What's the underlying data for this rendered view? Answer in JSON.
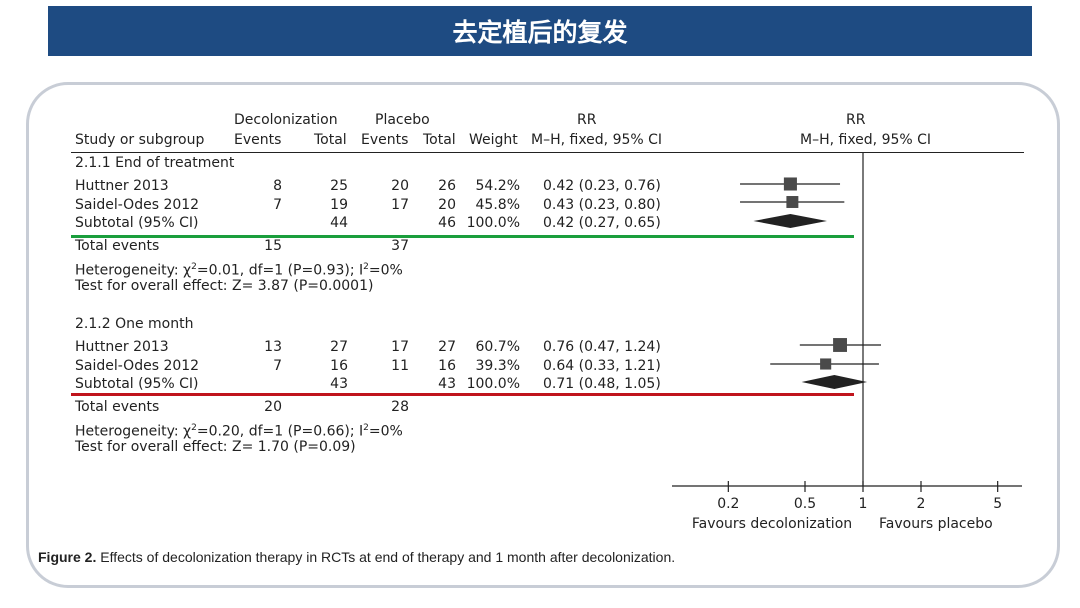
{
  "title": "去定植后的复发",
  "headers": {
    "group1": "Decolonization",
    "group2": "Placebo",
    "rr": "RR",
    "study": "Study or subgroup",
    "events1": "Events",
    "total1": "Total",
    "events2": "Events",
    "total2": "Total",
    "weight": "Weight",
    "method": "M–H, fixed, 95% CI",
    "plot_rr": "RR",
    "plot_method": "M–H, fixed, 95% CI"
  },
  "subgroups": [
    {
      "name": "2.1.1 End of treatment",
      "studies": [
        {
          "study": "Huttner 2013",
          "events1": "8",
          "total1": "25",
          "events2": "20",
          "total2": "26",
          "weight": "54.2%",
          "ci": "0.42 (0.23, 0.76)"
        },
        {
          "study": "Saidel-Odes 2012",
          "events1": "7",
          "total1": "19",
          "events2": "17",
          "total2": "20",
          "weight": "45.8%",
          "ci": "0.43 (0.23, 0.80)"
        }
      ],
      "subtotal": {
        "label": "Subtotal (95% CI)",
        "total1": "44",
        "total2": "46",
        "weight": "100.0%",
        "ci": "0.42 (0.27, 0.65)"
      },
      "total_events": {
        "label": "Total events",
        "events1": "15",
        "events2": "37"
      },
      "heterogeneity": {
        "prefix": "Heterogeneity: χ",
        "sup": "2",
        "rest": "=0.01, df=1 (P=0.93); I",
        "sup2": "2",
        "end": "=0%"
      },
      "overall": "Test for overall effect: Z= 3.87 (P=0.0001)",
      "underline_color": "#1a9e3c"
    },
    {
      "name": "2.1.2 One month",
      "studies": [
        {
          "study": "Huttner 2013",
          "events1": "13",
          "total1": "27",
          "events2": "17",
          "total2": "27",
          "weight": "60.7%",
          "ci": "0.76 (0.47, 1.24)"
        },
        {
          "study": "Saidel-Odes 2012",
          "events1": "7",
          "total1": "16",
          "events2": "11",
          "total2": "16",
          "weight": "39.3%",
          "ci": "0.64 (0.33, 1.21)"
        }
      ],
      "subtotal": {
        "label": "Subtotal (95% CI)",
        "total1": "43",
        "total2": "43",
        "weight": "100.0%",
        "ci": "0.71 (0.48, 1.05)"
      },
      "total_events": {
        "label": "Total events",
        "events1": "20",
        "events2": "28"
      },
      "heterogeneity": {
        "prefix": "Heterogeneity: χ",
        "sup": "2",
        "rest": "=0.20, df=1 (P=0.66); I",
        "sup2": "2",
        "end": "=0%"
      },
      "overall": "Test for overall effect: Z= 1.70 (P=0.09)",
      "underline_color": "#c0141c"
    }
  ],
  "axis": {
    "ticks": [
      "0.2",
      "0.5",
      "1",
      "2",
      "5"
    ],
    "left_label": "Favours decolonization",
    "right_label": "Favours placebo"
  },
  "caption": {
    "bold": "Figure 2.",
    "text": " Effects of decolonization therapy in RCTs at end of therapy and 1 month after decolonization."
  },
  "chart_data": {
    "type": "forest",
    "scale": "log",
    "xlim": [
      0.15,
      6
    ],
    "ticks": [
      0.2,
      0.5,
      1,
      2,
      5
    ],
    "series": [
      {
        "name": "Huttner 2013",
        "rr": 0.42,
        "lo": 0.23,
        "hi": 0.76,
        "weight": 54.2
      },
      {
        "name": "Saidel-Odes 2012",
        "rr": 0.43,
        "lo": 0.23,
        "hi": 0.8,
        "weight": 45.8
      },
      {
        "name": "Subtotal (95% CI)",
        "rr": 0.42,
        "lo": 0.27,
        "hi": 0.65,
        "diamond": true
      },
      {
        "name": "Huttner 2013",
        "rr": 0.76,
        "lo": 0.47,
        "hi": 1.24,
        "weight": 60.7
      },
      {
        "name": "Saidel-Odes 2012",
        "rr": 0.64,
        "lo": 0.33,
        "hi": 1.21,
        "weight": 39.3
      },
      {
        "name": "Subtotal (95% CI)",
        "rr": 0.71,
        "lo": 0.48,
        "hi": 1.05,
        "diamond": true
      }
    ]
  }
}
